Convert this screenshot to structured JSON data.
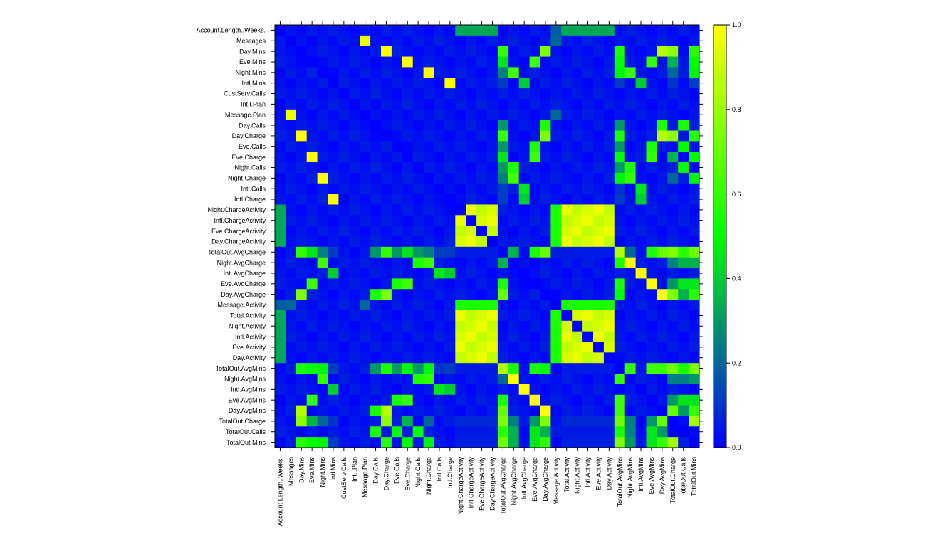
{
  "chart_data": {
    "type": "heatmap",
    "title": "",
    "xlabel": "",
    "ylabel": "",
    "x_labels": [
      "Account.Length..Weeks.",
      "Messages",
      "Day.Mins",
      "Eve.Mins",
      "Night.Mins",
      "Intl.Mins",
      "CustServ.Calls",
      "Int.l.Plan",
      "Message.Plan",
      "Day.Calls",
      "Day.Charge",
      "Eve.Calls",
      "Eve.Charge",
      "Night.Calls",
      "Night.Charge",
      "Intl.Calls",
      "Intl.Charge",
      "Night.ChargeActivity",
      "Intl.ChargeActivity",
      "Eve.ChargeActivity",
      "Day.ChargeActivity",
      "TotalOut.AvgCharge",
      "Night.AvgCharge",
      "Intl.AvgCharge",
      "Eve.AvgCharge",
      "Day.AvgCharge",
      "Message.Activity",
      "Total.Activity",
      "Night.Activity",
      "Intl.Activity",
      "Eve.Activity",
      "Day.Activity",
      "TotalOut.AvgMins",
      "Night.AvgMins",
      "Intl.AvgMins",
      "Eve.AvgMins",
      "Day.AvgMins",
      "TotalOut.Charge",
      "TotalOut.Calls",
      "TotalOut.Mins"
    ],
    "y_labels": [
      "Account.Length..Weeks.",
      "Messages",
      "Day.Mins",
      "Eve.Mins",
      "Night.Mins",
      "Intl.Mins",
      "CustServ.Calls",
      "Int.l.Plan",
      "Message.Plan",
      "Day.Calls",
      "Day.Charge",
      "Eve.Calls",
      "Eve.Charge",
      "Night.Calls",
      "Night.Charge",
      "Intl.Calls",
      "Intl.Charge",
      "Night.ChargeActivity",
      "Intl.ChargeActivity",
      "Eve.ChargeActivity",
      "Day.ChargeActivity",
      "TotalOut.AvgCharge",
      "Night.AvgCharge",
      "Intl.AvgCharge",
      "Eve.AvgCharge",
      "Day.AvgCharge",
      "Message.Activity",
      "Total.Activity",
      "Night.Activity",
      "Intl.Activity",
      "Eve.Activity",
      "Day.Activity",
      "TotalOut.AvgMins",
      "Night.AvgMins",
      "Intl.AvgMins",
      "Eve.AvgMins",
      "Day.AvgMins",
      "TotalOut.Charge",
      "TotalOut.Calls",
      "TotalOut.Mins"
    ],
    "value_range": [
      0.0,
      1.0
    ],
    "colorbar": {
      "ticks": [
        "0.0",
        "0.2",
        "0.4",
        "0.6",
        "0.8",
        "1.0"
      ],
      "colors": [
        "#0000ff",
        "#00ff00",
        "#ffff00"
      ]
    },
    "diagonal_value": 0.0,
    "groups": {
      "base": [
        0,
        1,
        2,
        3,
        4,
        5,
        6,
        7,
        8,
        9,
        10,
        11,
        12,
        13,
        14,
        15,
        16
      ],
      "charge_activity": [
        17,
        18,
        19,
        20
      ],
      "activity": [
        27,
        28,
        29,
        30,
        31
      ]
    },
    "cells": [
      [
        0,
        1,
        0.04
      ],
      [
        0,
        17,
        0.33
      ],
      [
        0,
        18,
        0.33
      ],
      [
        0,
        19,
        0.33
      ],
      [
        0,
        20,
        0.33
      ],
      [
        0,
        26,
        0.18
      ],
      [
        0,
        27,
        0.33
      ],
      [
        0,
        28,
        0.33
      ],
      [
        0,
        29,
        0.33
      ],
      [
        0,
        30,
        0.33
      ],
      [
        0,
        31,
        0.33
      ],
      [
        1,
        8,
        0.96
      ],
      [
        1,
        26,
        0.2
      ],
      [
        2,
        10,
        1.0
      ],
      [
        2,
        21,
        0.6
      ],
      [
        2,
        25,
        0.74
      ],
      [
        2,
        32,
        0.55
      ],
      [
        2,
        36,
        0.85
      ],
      [
        2,
        37,
        0.78
      ],
      [
        2,
        39,
        0.58
      ],
      [
        2,
        24,
        0.02
      ],
      [
        3,
        12,
        1.0
      ],
      [
        3,
        21,
        0.45
      ],
      [
        3,
        24,
        0.62
      ],
      [
        3,
        32,
        0.5
      ],
      [
        3,
        35,
        0.6
      ],
      [
        3,
        37,
        0.35
      ],
      [
        3,
        39,
        0.5
      ],
      [
        4,
        14,
        1.0
      ],
      [
        4,
        21,
        0.25
      ],
      [
        4,
        22,
        0.62
      ],
      [
        4,
        32,
        0.48
      ],
      [
        4,
        33,
        0.6
      ],
      [
        4,
        37,
        0.2
      ],
      [
        4,
        39,
        0.48
      ],
      [
        5,
        16,
        1.0
      ],
      [
        5,
        21,
        0.12
      ],
      [
        5,
        23,
        0.4
      ],
      [
        5,
        32,
        0.12
      ],
      [
        5,
        34,
        0.4
      ],
      [
        5,
        37,
        0.1
      ],
      [
        5,
        39,
        0.12
      ],
      [
        8,
        1,
        0.96
      ],
      [
        8,
        26,
        0.2
      ],
      [
        9,
        21,
        0.3
      ],
      [
        9,
        25,
        0.55
      ],
      [
        9,
        32,
        0.3
      ],
      [
        9,
        36,
        0.55
      ],
      [
        9,
        38,
        0.55
      ],
      [
        10,
        2,
        1.0
      ],
      [
        10,
        21,
        0.6
      ],
      [
        10,
        25,
        0.74
      ],
      [
        10,
        32,
        0.55
      ],
      [
        10,
        36,
        0.85
      ],
      [
        10,
        37,
        0.78
      ],
      [
        10,
        39,
        0.58
      ],
      [
        11,
        21,
        0.3
      ],
      [
        11,
        24,
        0.55
      ],
      [
        11,
        32,
        0.3
      ],
      [
        11,
        35,
        0.55
      ],
      [
        11,
        38,
        0.5
      ],
      [
        12,
        3,
        1.0
      ],
      [
        12,
        21,
        0.45
      ],
      [
        12,
        24,
        0.62
      ],
      [
        12,
        32,
        0.5
      ],
      [
        12,
        35,
        0.6
      ],
      [
        12,
        37,
        0.35
      ],
      [
        12,
        39,
        0.5
      ],
      [
        13,
        21,
        0.3
      ],
      [
        13,
        22,
        0.55
      ],
      [
        13,
        32,
        0.3
      ],
      [
        13,
        33,
        0.55
      ],
      [
        13,
        38,
        0.5
      ],
      [
        14,
        4,
        1.0
      ],
      [
        14,
        21,
        0.25
      ],
      [
        14,
        22,
        0.62
      ],
      [
        14,
        32,
        0.48
      ],
      [
        14,
        33,
        0.6
      ],
      [
        14,
        37,
        0.2
      ],
      [
        14,
        39,
        0.48
      ],
      [
        15,
        21,
        0.12
      ],
      [
        15,
        23,
        0.45
      ],
      [
        15,
        32,
        0.1
      ],
      [
        15,
        34,
        0.45
      ],
      [
        16,
        5,
        1.0
      ],
      [
        16,
        21,
        0.12
      ],
      [
        16,
        23,
        0.4
      ],
      [
        16,
        32,
        0.12
      ],
      [
        16,
        34,
        0.4
      ],
      [
        21,
        2,
        0.6
      ],
      [
        21,
        3,
        0.45
      ],
      [
        21,
        4,
        0.25
      ],
      [
        21,
        9,
        0.3
      ],
      [
        21,
        10,
        0.6
      ],
      [
        21,
        11,
        0.3
      ],
      [
        21,
        12,
        0.45
      ],
      [
        21,
        13,
        0.3
      ],
      [
        21,
        14,
        0.25
      ],
      [
        21,
        22,
        0.35
      ],
      [
        21,
        24,
        0.55
      ],
      [
        21,
        25,
        0.7
      ],
      [
        21,
        32,
        0.85
      ],
      [
        21,
        33,
        0.2
      ],
      [
        21,
        35,
        0.55
      ],
      [
        21,
        36,
        0.7
      ],
      [
        21,
        37,
        0.75
      ],
      [
        21,
        38,
        0.58
      ],
      [
        21,
        39,
        0.72
      ],
      [
        22,
        4,
        0.62
      ],
      [
        22,
        13,
        0.55
      ],
      [
        22,
        14,
        0.62
      ],
      [
        22,
        21,
        0.35
      ],
      [
        22,
        32,
        0.55
      ],
      [
        22,
        33,
        1.0
      ],
      [
        22,
        38,
        0.35
      ],
      [
        22,
        39,
        0.35
      ],
      [
        23,
        5,
        0.4
      ],
      [
        23,
        15,
        0.45
      ],
      [
        23,
        16,
        0.4
      ],
      [
        23,
        34,
        1.0
      ],
      [
        24,
        3,
        0.62
      ],
      [
        24,
        11,
        0.55
      ],
      [
        24,
        12,
        0.62
      ],
      [
        24,
        21,
        0.55
      ],
      [
        24,
        32,
        0.55
      ],
      [
        24,
        35,
        1.0
      ],
      [
        24,
        37,
        0.3
      ],
      [
        24,
        38,
        0.45
      ],
      [
        24,
        39,
        0.45
      ],
      [
        25,
        2,
        0.74
      ],
      [
        25,
        9,
        0.55
      ],
      [
        25,
        10,
        0.74
      ],
      [
        25,
        21,
        0.7
      ],
      [
        25,
        32,
        0.5
      ],
      [
        25,
        36,
        1.0
      ],
      [
        25,
        37,
        0.75
      ],
      [
        25,
        38,
        0.35
      ],
      [
        25,
        39,
        0.58
      ],
      [
        26,
        0,
        0.18
      ],
      [
        26,
        1,
        0.2
      ],
      [
        26,
        8,
        0.2
      ],
      [
        32,
        2,
        0.55
      ],
      [
        32,
        3,
        0.5
      ],
      [
        32,
        4,
        0.48
      ],
      [
        32,
        9,
        0.3
      ],
      [
        32,
        10,
        0.55
      ],
      [
        32,
        11,
        0.3
      ],
      [
        32,
        12,
        0.5
      ],
      [
        32,
        13,
        0.3
      ],
      [
        32,
        14,
        0.48
      ],
      [
        32,
        21,
        0.85
      ],
      [
        32,
        22,
        0.55
      ],
      [
        32,
        24,
        0.55
      ],
      [
        32,
        25,
        0.5
      ],
      [
        32,
        33,
        0.6
      ],
      [
        32,
        35,
        0.62
      ],
      [
        32,
        36,
        0.62
      ],
      [
        32,
        37,
        0.72
      ],
      [
        32,
        38,
        0.55
      ],
      [
        32,
        39,
        0.75
      ],
      [
        33,
        4,
        0.6
      ],
      [
        33,
        13,
        0.55
      ],
      [
        33,
        14,
        0.6
      ],
      [
        33,
        21,
        0.2
      ],
      [
        33,
        22,
        1.0
      ],
      [
        33,
        32,
        0.6
      ],
      [
        33,
        38,
        0.25
      ],
      [
        33,
        39,
        0.3
      ],
      [
        34,
        5,
        0.4
      ],
      [
        34,
        15,
        0.45
      ],
      [
        34,
        16,
        0.4
      ],
      [
        34,
        23,
        1.0
      ],
      [
        35,
        3,
        0.6
      ],
      [
        35,
        11,
        0.55
      ],
      [
        35,
        12,
        0.6
      ],
      [
        35,
        21,
        0.55
      ],
      [
        35,
        24,
        1.0
      ],
      [
        35,
        32,
        0.62
      ],
      [
        35,
        37,
        0.3
      ],
      [
        35,
        38,
        0.45
      ],
      [
        35,
        39,
        0.45
      ],
      [
        36,
        2,
        0.85
      ],
      [
        36,
        9,
        0.55
      ],
      [
        36,
        10,
        0.85
      ],
      [
        36,
        21,
        0.7
      ],
      [
        36,
        25,
        1.0
      ],
      [
        36,
        32,
        0.62
      ],
      [
        36,
        37,
        0.7
      ],
      [
        36,
        38,
        0.3
      ],
      [
        36,
        39,
        0.6
      ],
      [
        37,
        2,
        0.78
      ],
      [
        37,
        3,
        0.35
      ],
      [
        37,
        4,
        0.2
      ],
      [
        37,
        10,
        0.78
      ],
      [
        37,
        12,
        0.35
      ],
      [
        37,
        14,
        0.2
      ],
      [
        37,
        21,
        0.75
      ],
      [
        37,
        24,
        0.3
      ],
      [
        37,
        25,
        0.75
      ],
      [
        37,
        32,
        0.72
      ],
      [
        37,
        35,
        0.3
      ],
      [
        37,
        36,
        0.7
      ],
      [
        37,
        39,
        0.82
      ],
      [
        37,
        22,
        0.25
      ],
      [
        37,
        33,
        0.25
      ],
      [
        38,
        9,
        0.55
      ],
      [
        38,
        11,
        0.5
      ],
      [
        38,
        13,
        0.5
      ],
      [
        38,
        21,
        0.58
      ],
      [
        38,
        22,
        0.35
      ],
      [
        38,
        24,
        0.45
      ],
      [
        38,
        25,
        0.35
      ],
      [
        38,
        32,
        0.55
      ],
      [
        38,
        33,
        0.25
      ],
      [
        38,
        35,
        0.45
      ],
      [
        38,
        36,
        0.3
      ],
      [
        39,
        2,
        0.58
      ],
      [
        39,
        3,
        0.5
      ],
      [
        39,
        4,
        0.48
      ],
      [
        39,
        10,
        0.58
      ],
      [
        39,
        12,
        0.5
      ],
      [
        39,
        14,
        0.48
      ],
      [
        39,
        21,
        0.72
      ],
      [
        39,
        22,
        0.35
      ],
      [
        39,
        24,
        0.45
      ],
      [
        39,
        25,
        0.58
      ],
      [
        39,
        32,
        0.75
      ],
      [
        39,
        33,
        0.3
      ],
      [
        39,
        35,
        0.45
      ],
      [
        39,
        36,
        0.6
      ],
      [
        39,
        37,
        0.82
      ]
    ]
  }
}
